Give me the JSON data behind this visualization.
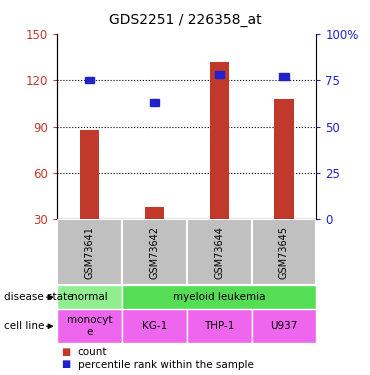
{
  "title": "GDS2251 / 226358_at",
  "samples": [
    "GSM73641",
    "GSM73642",
    "GSM73644",
    "GSM73645"
  ],
  "bar_values": [
    88,
    38,
    132,
    108
  ],
  "percentile_values": [
    75,
    63,
    78,
    77
  ],
  "ylim_left": [
    30,
    150
  ],
  "ylim_right": [
    0,
    100
  ],
  "yticks_left": [
    30,
    60,
    90,
    120,
    150
  ],
  "yticks_right": [
    0,
    25,
    50,
    75,
    100
  ],
  "ytick_labels_right": [
    "0",
    "25",
    "50",
    "75",
    "100%"
  ],
  "bar_color": "#c0392b",
  "percentile_color": "#2222cc",
  "gridline_values": [
    60,
    90,
    120
  ],
  "normal_color": "#90ee90",
  "leukemia_color": "#55dd55",
  "cell_color": "#ee66ee",
  "gsm_bg": "#c0c0c0",
  "legend_count_color": "#c0392b",
  "legend_pct_color": "#2222cc"
}
